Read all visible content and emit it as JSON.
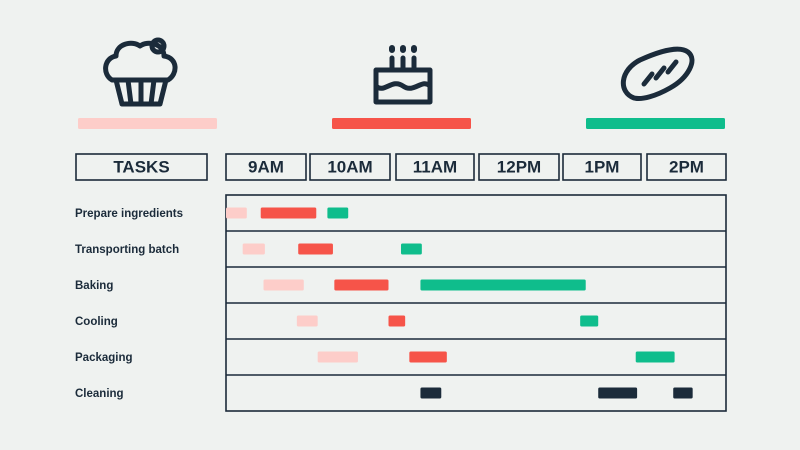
{
  "header": {
    "tasks_label": "TASKS"
  },
  "products": [
    {
      "icon": "cupcake-icon",
      "color": "#fdcdc9"
    },
    {
      "icon": "birthday-cake-icon",
      "color": "#f65449"
    },
    {
      "icon": "bread-icon",
      "color": "#0fbd8c"
    }
  ],
  "cleaning_color": "#1b2b3a",
  "chart_data": {
    "type": "gantt",
    "time_slots": [
      "9AM",
      "10AM",
      "11AM",
      "12PM",
      "1PM",
      "2PM"
    ],
    "x_range": [
      "9:00",
      "15:00"
    ],
    "tasks": [
      {
        "name": "Prepare ingredients",
        "bars": [
          {
            "product": 0,
            "start": "9:00",
            "end": "9:15"
          },
          {
            "product": 1,
            "start": "9:25",
            "end": "10:05"
          },
          {
            "product": 2,
            "start": "10:13",
            "end": "10:28"
          }
        ]
      },
      {
        "name": "Transporting batch",
        "bars": [
          {
            "product": 0,
            "start": "9:12",
            "end": "9:28"
          },
          {
            "product": 1,
            "start": "9:62",
            "end": "10:17"
          },
          {
            "product": 2,
            "start": "11:06",
            "end": "11:21"
          }
        ]
      },
      {
        "name": "Baking",
        "bars": [
          {
            "product": 0,
            "start": "9:27",
            "end": "9:56"
          },
          {
            "product": 1,
            "start": "10:18",
            "end": "10:57"
          },
          {
            "product": 2,
            "start": "11:20",
            "end": "1:19"
          }
        ]
      },
      {
        "name": "Cooling",
        "bars": [
          {
            "product": 0,
            "start": "9:51",
            "end": "10:06"
          },
          {
            "product": 1,
            "start": "10:57",
            "end": "11:09"
          },
          {
            "product": 2,
            "start": "1:15",
            "end": "1:28"
          }
        ]
      },
      {
        "name": "Packaging",
        "bars": [
          {
            "product": 0,
            "start": "10:06",
            "end": "10:35"
          },
          {
            "product": 1,
            "start": "11:12",
            "end": "11:39"
          },
          {
            "product": 2,
            "start": "1:55",
            "end": "2:23"
          }
        ]
      },
      {
        "name": "Cleaning",
        "bars": [
          {
            "product": "cleaning",
            "start": "11:20",
            "end": "11:35"
          },
          {
            "product": "cleaning",
            "start": "1:28",
            "end": "1:56"
          },
          {
            "product": "cleaning",
            "start": "2:22",
            "end": "2:36"
          }
        ]
      }
    ]
  }
}
